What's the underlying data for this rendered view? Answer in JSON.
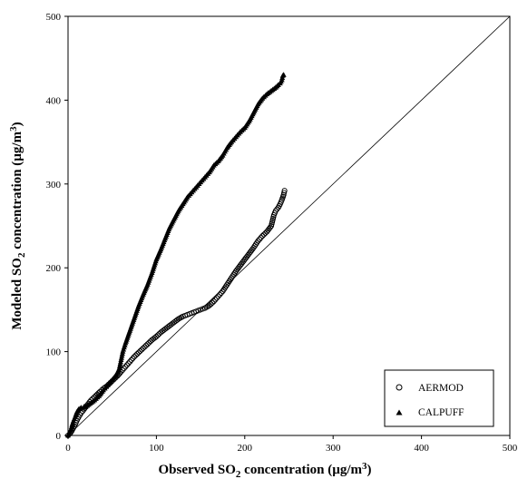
{
  "chart_data": {
    "type": "scatter",
    "title": "",
    "xlabel": "Observed SO",
    "xlabel_sub": "2",
    "xlabel_rest": " concentration (µg/m",
    "xlabel_sup": "3",
    "xlabel_end": ")",
    "ylabel": "Modeled SO",
    "ylabel_sub": "2",
    "ylabel_rest": " concentration (µg/m",
    "ylabel_sup": "3",
    "ylabel_end": ")",
    "xlim": [
      0,
      500
    ],
    "ylim": [
      0,
      500
    ],
    "x_ticks": [
      "0",
      "100",
      "200",
      "300",
      "400",
      "500"
    ],
    "y_ticks": [
      "0",
      "100",
      "200",
      "300",
      "400",
      "500"
    ],
    "grid": false,
    "legend_position": "bottom-right",
    "reference_line": {
      "from": [
        0,
        0
      ],
      "to": [
        500,
        500
      ]
    },
    "series": [
      {
        "name": "AERMOD",
        "marker": "open-circle",
        "color": "#000000",
        "points": [
          [
            0,
            0
          ],
          [
            2,
            2
          ],
          [
            4,
            5
          ],
          [
            6,
            9
          ],
          [
            8,
            13
          ],
          [
            10,
            18
          ],
          [
            12,
            22
          ],
          [
            15,
            27
          ],
          [
            18,
            31
          ],
          [
            20,
            34
          ],
          [
            23,
            38
          ],
          [
            26,
            42
          ],
          [
            30,
            46
          ],
          [
            33,
            49
          ],
          [
            36,
            52
          ],
          [
            40,
            56
          ],
          [
            44,
            59
          ],
          [
            48,
            63
          ],
          [
            52,
            67
          ],
          [
            56,
            71
          ],
          [
            60,
            76
          ],
          [
            65,
            82
          ],
          [
            70,
            88
          ],
          [
            75,
            94
          ],
          [
            80,
            99
          ],
          [
            85,
            104
          ],
          [
            90,
            109
          ],
          [
            95,
            114
          ],
          [
            100,
            118
          ],
          [
            105,
            123
          ],
          [
            110,
            127
          ],
          [
            115,
            131
          ],
          [
            120,
            135
          ],
          [
            125,
            139
          ],
          [
            130,
            142
          ],
          [
            135,
            144
          ],
          [
            140,
            146
          ],
          [
            145,
            148
          ],
          [
            150,
            150
          ],
          [
            155,
            152
          ],
          [
            160,
            155
          ],
          [
            165,
            160
          ],
          [
            170,
            166
          ],
          [
            175,
            172
          ],
          [
            180,
            180
          ],
          [
            185,
            188
          ],
          [
            190,
            196
          ],
          [
            195,
            203
          ],
          [
            200,
            210
          ],
          [
            205,
            217
          ],
          [
            210,
            224
          ],
          [
            215,
            232
          ],
          [
            220,
            238
          ],
          [
            225,
            243
          ],
          [
            230,
            250
          ],
          [
            233,
            263
          ],
          [
            235,
            268
          ],
          [
            238,
            272
          ],
          [
            240,
            276
          ],
          [
            242,
            281
          ],
          [
            244,
            287
          ],
          [
            245,
            292
          ]
        ]
      },
      {
        "name": "CALPUFF",
        "marker": "filled-triangle",
        "color": "#000000",
        "points": [
          [
            0,
            0
          ],
          [
            1,
            2
          ],
          [
            2,
            4
          ],
          [
            3,
            7
          ],
          [
            4,
            10
          ],
          [
            5,
            14
          ],
          [
            6,
            17
          ],
          [
            8,
            22
          ],
          [
            10,
            28
          ],
          [
            12,
            31
          ],
          [
            15,
            33
          ],
          [
            18,
            34
          ],
          [
            20,
            34
          ],
          [
            25,
            38
          ],
          [
            30,
            42
          ],
          [
            35,
            47
          ],
          [
            40,
            54
          ],
          [
            45,
            60
          ],
          [
            50,
            66
          ],
          [
            55,
            73
          ],
          [
            58,
            80
          ],
          [
            60,
            90
          ],
          [
            62,
            100
          ],
          [
            65,
            110
          ],
          [
            70,
            125
          ],
          [
            75,
            140
          ],
          [
            80,
            155
          ],
          [
            85,
            168
          ],
          [
            90,
            180
          ],
          [
            95,
            194
          ],
          [
            100,
            210
          ],
          [
            105,
            222
          ],
          [
            110,
            235
          ],
          [
            115,
            248
          ],
          [
            120,
            258
          ],
          [
            125,
            268
          ],
          [
            130,
            276
          ],
          [
            135,
            284
          ],
          [
            140,
            290
          ],
          [
            145,
            296
          ],
          [
            150,
            302
          ],
          [
            155,
            308
          ],
          [
            160,
            314
          ],
          [
            165,
            322
          ],
          [
            170,
            327
          ],
          [
            175,
            334
          ],
          [
            180,
            343
          ],
          [
            185,
            350
          ],
          [
            190,
            356
          ],
          [
            195,
            362
          ],
          [
            200,
            367
          ],
          [
            205,
            375
          ],
          [
            210,
            385
          ],
          [
            215,
            395
          ],
          [
            220,
            402
          ],
          [
            225,
            407
          ],
          [
            230,
            411
          ],
          [
            235,
            415
          ],
          [
            238,
            418
          ],
          [
            240,
            420
          ],
          [
            242,
            424
          ],
          [
            243,
            429
          ],
          [
            244,
            430
          ]
        ]
      }
    ]
  }
}
